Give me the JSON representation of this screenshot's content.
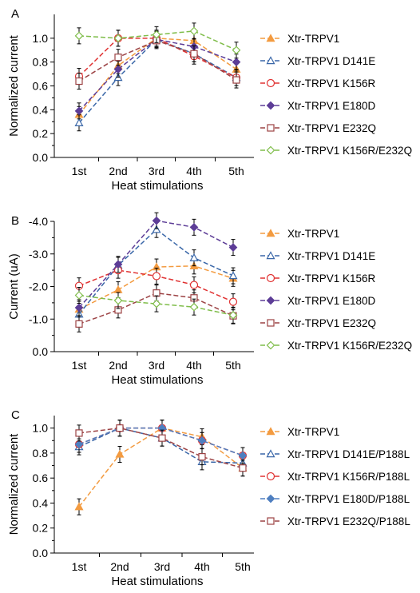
{
  "chart_data": [
    {
      "panel_label": "A",
      "type": "line",
      "categories": [
        "1st",
        "2nd",
        "3rd",
        "4th",
        "5th"
      ],
      "xlabel": "Heat stimulations",
      "ylabel": "Normalized current",
      "ylim": [
        0,
        1.2
      ],
      "yticks": [
        "0.0",
        "0.2",
        "0.4",
        "0.6",
        "0.8",
        "1.0"
      ],
      "grid": false,
      "legend": "right",
      "series": [
        {
          "name": "Xtr-TRPV1",
          "values": [
            0.36,
            0.77,
            1.0,
            0.98,
            0.74
          ],
          "color": "#f39b40",
          "marker": "triangle-filled"
        },
        {
          "name": "Xtr-TRPV1 D141E",
          "values": [
            0.29,
            0.67,
            0.99,
            0.87,
            0.67
          ],
          "color": "#3a67a8",
          "marker": "triangle-open"
        },
        {
          "name": "Xtr-TRPV1 K156R",
          "values": [
            0.68,
            1.0,
            1.0,
            0.85,
            0.67
          ],
          "color": "#e03232",
          "marker": "circle-open"
        },
        {
          "name": "Xtr-TRPV1 E180D",
          "values": [
            0.39,
            0.74,
            0.99,
            0.93,
            0.8
          ],
          "color": "#5d3d97",
          "marker": "diamond-filled"
        },
        {
          "name": "Xtr-TRPV1 E232Q",
          "values": [
            0.64,
            0.84,
            0.98,
            0.87,
            0.65
          ],
          "color": "#9c4244",
          "marker": "square-open"
        },
        {
          "name": "Xtr-TRPV1 K156R/E232Q",
          "values": [
            1.02,
            1.0,
            1.03,
            1.06,
            0.9
          ],
          "color": "#7fbd4a",
          "marker": "diamond-open"
        }
      ]
    },
    {
      "panel_label": "B",
      "type": "line",
      "categories": [
        "1st",
        "2nd",
        "3rd",
        "4th",
        "5th"
      ],
      "xlabel": "Heat stimulations",
      "ylabel": "Current (uA)",
      "ylim": [
        0,
        -4.0
      ],
      "yticks": [
        "0.0",
        "-1.0",
        "-2.0",
        "-3.0",
        "-4.0"
      ],
      "grid": false,
      "legend": "right",
      "series": [
        {
          "name": "Xtr-TRPV1",
          "values": [
            -1.3,
            -1.9,
            -2.6,
            -2.63,
            -2.25
          ],
          "color": "#f39b40",
          "marker": "triangle-filled"
        },
        {
          "name": "Xtr-TRPV1 D141E",
          "values": [
            -1.15,
            -2.65,
            -3.75,
            -2.88,
            -2.33
          ],
          "color": "#3a67a8",
          "marker": "triangle-open"
        },
        {
          "name": "Xtr-TRPV1 K156R",
          "values": [
            -2.02,
            -2.5,
            -2.32,
            -2.05,
            -1.53
          ],
          "color": "#e03232",
          "marker": "circle-open"
        },
        {
          "name": "Xtr-TRPV1 E180D",
          "values": [
            -1.35,
            -2.68,
            -4.02,
            -3.82,
            -3.2
          ],
          "color": "#5d3d97",
          "marker": "diamond-filled"
        },
        {
          "name": "Xtr-TRPV1 E232Q",
          "values": [
            -0.85,
            -1.28,
            -1.8,
            -1.65,
            -1.1
          ],
          "color": "#9c4244",
          "marker": "square-open"
        },
        {
          "name": "Xtr-TRPV1 K156R/E232Q",
          "values": [
            -1.73,
            -1.57,
            -1.47,
            -1.37,
            -1.12
          ],
          "color": "#7fbd4a",
          "marker": "diamond-open"
        }
      ]
    },
    {
      "panel_label": "C",
      "type": "line",
      "categories": [
        "1st",
        "2nd",
        "3rd",
        "4th",
        "5th"
      ],
      "xlabel": "Heat stimulations",
      "ylabel": "Normalized current",
      "ylim": [
        0,
        1.1
      ],
      "yticks": [
        "0.0",
        "0.2",
        "0.4",
        "0.6",
        "0.8",
        "1.0"
      ],
      "grid": false,
      "legend": "right",
      "series": [
        {
          "name": "Xtr-TRPV1",
          "values": [
            0.37,
            0.79,
            1.0,
            0.93,
            0.68
          ],
          "color": "#f39b40",
          "marker": "triangle-filled"
        },
        {
          "name": "Xtr-TRPV1 D141E/P188L",
          "values": [
            0.85,
            1.0,
            0.92,
            0.73,
            0.72
          ],
          "color": "#3a67a8",
          "marker": "triangle-open"
        },
        {
          "name": "Xtr-TRPV1 K156R/P188L",
          "values": [
            0.87,
            1.0,
            1.0,
            0.9,
            0.78
          ],
          "color": "#e03232",
          "marker": "circle-open"
        },
        {
          "name": "Xtr-TRPV1 E180D/P188L",
          "values": [
            0.87,
            1.0,
            1.0,
            0.9,
            0.78
          ],
          "color": "#4f7fc0",
          "marker": "diamond-filled"
        },
        {
          "name": "Xtr-TRPV1 E232Q/P188L",
          "values": [
            0.96,
            1.0,
            0.92,
            0.77,
            0.68
          ],
          "color": "#9c4244",
          "marker": "square-open"
        }
      ]
    }
  ]
}
